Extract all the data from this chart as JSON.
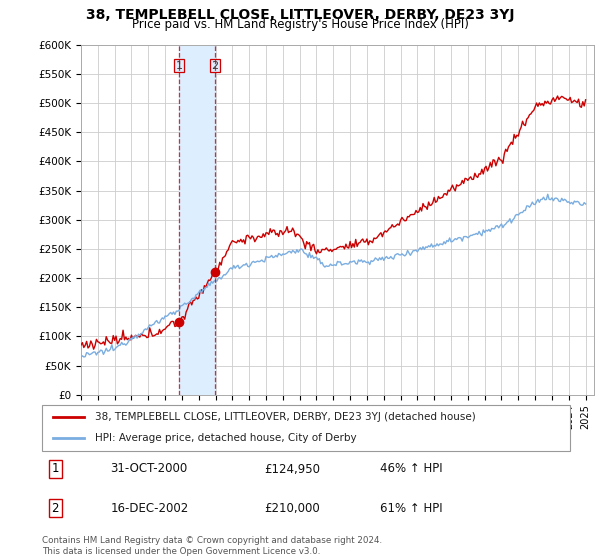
{
  "title": "38, TEMPLEBELL CLOSE, LITTLEOVER, DERBY, DE23 3YJ",
  "subtitle": "Price paid vs. HM Land Registry's House Price Index (HPI)",
  "ylim": [
    0,
    600000
  ],
  "yticks": [
    0,
    50000,
    100000,
    150000,
    200000,
    250000,
    300000,
    350000,
    400000,
    450000,
    500000,
    550000,
    600000
  ],
  "ytick_labels": [
    "£0",
    "£50K",
    "£100K",
    "£150K",
    "£200K",
    "£250K",
    "£300K",
    "£350K",
    "£400K",
    "£450K",
    "£500K",
    "£550K",
    "£600K"
  ],
  "xlim_start": 1995.0,
  "xlim_end": 2025.5,
  "sale1_date": 2000.83,
  "sale1_price": 124950,
  "sale2_date": 2002.96,
  "sale2_price": 210000,
  "line_color_red": "#cc0000",
  "line_color_blue": "#7aade0",
  "shade_color": "#ddeeff",
  "legend_line1": "38, TEMPLEBELL CLOSE, LITTLEOVER, DERBY, DE23 3YJ (detached house)",
  "legend_line2": "HPI: Average price, detached house, City of Derby",
  "footer": "Contains HM Land Registry data © Crown copyright and database right 2024.\nThis data is licensed under the Open Government Licence v3.0.",
  "table_rows": [
    [
      "1",
      "31-OCT-2000",
      "£124,950",
      "46% ↑ HPI"
    ],
    [
      "2",
      "16-DEC-2002",
      "£210,000",
      "61% ↑ HPI"
    ]
  ],
  "background_color": "#ffffff",
  "grid_color": "#cccccc"
}
